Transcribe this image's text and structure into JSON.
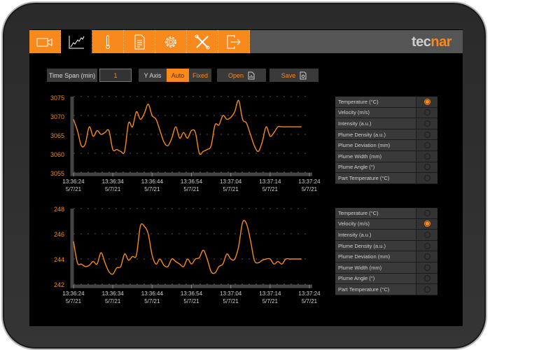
{
  "brand": {
    "logo_left": "tec",
    "logo_right": "nar",
    "accent": "#f7891d"
  },
  "nav": {
    "items": [
      {
        "name": "camera",
        "icon": "video-camera-icon",
        "active": false
      },
      {
        "name": "charts",
        "icon": "line-chart-icon",
        "active": true
      },
      {
        "name": "temperature",
        "icon": "thermometer-icon",
        "active": false
      },
      {
        "name": "report",
        "icon": "document-icon",
        "active": false
      },
      {
        "name": "settings",
        "icon": "gear-icon",
        "active": false
      },
      {
        "name": "tools",
        "icon": "tools-icon",
        "active": false
      },
      {
        "name": "exit",
        "icon": "logout-icon",
        "active": false
      }
    ]
  },
  "toolbar": {
    "time_span_label": "Time Span (min)",
    "time_span_value": "1",
    "y_axis_label": "Y Axis",
    "auto_label": "Auto",
    "fixed_label": "Fixed",
    "y_axis_mode": "Auto",
    "open_label": "Open",
    "save_label": "Save"
  },
  "legend_options": [
    "Temperature (°C)",
    "Velocity (m/s)",
    "Intensity (a.u.)",
    "Plume Density (a.u.)",
    "Plume Deviation (mm)",
    "Plume Width (mm)",
    "Plume Angle (°)",
    "Part Temperature (°C)"
  ],
  "chart_data": [
    {
      "type": "line",
      "title": "Temperature (°C)",
      "selected_series": "Temperature (°C)",
      "ylim": [
        3055,
        3075
      ],
      "yticks": [
        "3075",
        "3070",
        "3065",
        "3060",
        "3055"
      ],
      "xticks": [
        {
          "time": "13:36:24",
          "date": "5/7/21"
        },
        {
          "time": "13:36:34",
          "date": "5/7/21"
        },
        {
          "time": "13:36:44",
          "date": "5/7/21"
        },
        {
          "time": "13:36:54",
          "date": "5/7/21"
        },
        {
          "time": "13:37:04",
          "date": "5/7/21"
        },
        {
          "time": "13:37:14",
          "date": "5/7/21"
        },
        {
          "time": "13:37:24",
          "date": "5/7/21"
        }
      ],
      "grid": true,
      "color": "#f7891d",
      "x_seconds": [
        0,
        1,
        2,
        3,
        4,
        5,
        6,
        7,
        8,
        9,
        10,
        11,
        12,
        13,
        14,
        15,
        16,
        17,
        18,
        19,
        20,
        21,
        22,
        23,
        24,
        25,
        26,
        27,
        28,
        29,
        30,
        31,
        32,
        33,
        34,
        35,
        36,
        37,
        38,
        39,
        40,
        41,
        42,
        43,
        44,
        45,
        46,
        47,
        48,
        49,
        50,
        51,
        52,
        53,
        54,
        55,
        56,
        57,
        58
      ],
      "values": [
        3069,
        3066,
        3062,
        3062.5,
        3067,
        3064.5,
        3066,
        3065,
        3065.5,
        3066,
        3061,
        3061,
        3060.5,
        3060.5,
        3068,
        3067,
        3071,
        3069,
        3070.5,
        3073,
        3070,
        3069,
        3066,
        3063,
        3062,
        3064,
        3067,
        3064,
        3065.5,
        3064,
        3066,
        3065.5,
        3060,
        3060.5,
        3061,
        3062,
        3067.5,
        3067.5,
        3070,
        3069,
        3069.5,
        3071,
        3074,
        3069,
        3068,
        3065,
        3062,
        3060.5,
        3063,
        3067,
        3064.5,
        3065.5,
        3067,
        3067,
        3067,
        3067,
        3067,
        3067,
        3067
      ]
    },
    {
      "type": "line",
      "title": "Velocity (m/s)",
      "selected_series": "Velocity (m/s)",
      "ylim": [
        242,
        248
      ],
      "yticks": [
        "248",
        "246",
        "244",
        "242"
      ],
      "xticks": [
        {
          "time": "13:36:24",
          "date": "5/7/21"
        },
        {
          "time": "13:36:34",
          "date": "5/7/21"
        },
        {
          "time": "13:36:44",
          "date": "5/7/21"
        },
        {
          "time": "13:36:54",
          "date": "5/7/21"
        },
        {
          "time": "13:37:04",
          "date": "5/7/21"
        },
        {
          "time": "13:37:14",
          "date": "5/7/21"
        },
        {
          "time": "13:37:24",
          "date": "5/7/21"
        }
      ],
      "grid": true,
      "color": "#f7891d",
      "x_seconds": [
        0,
        1,
        2,
        3,
        4,
        5,
        6,
        7,
        8,
        9,
        10,
        11,
        12,
        13,
        14,
        15,
        16,
        17,
        18,
        19,
        20,
        21,
        22,
        23,
        24,
        25,
        26,
        27,
        28,
        29,
        30,
        31,
        32,
        33,
        34,
        35,
        36,
        37,
        38,
        39,
        40,
        41,
        42,
        43,
        44,
        45,
        46,
        47,
        48,
        49,
        50,
        51,
        52,
        53,
        54,
        55,
        56,
        57,
        58
      ],
      "values": [
        245.4,
        243.7,
        243.6,
        243.4,
        243.5,
        243.8,
        243.6,
        244.5,
        243.7,
        243.0,
        242.8,
        243.3,
        243.4,
        244.4,
        243.9,
        244.2,
        244.3,
        246.6,
        246.6,
        246.0,
        244.3,
        243.6,
        244.0,
        243.5,
        243.4,
        244.0,
        243.8,
        243.6,
        243.4,
        244.0,
        243.6,
        244.0,
        244.1,
        244.7,
        244.0,
        243.0,
        242.9,
        243.4,
        243.6,
        244.4,
        244.0,
        244.0,
        245.0,
        246.9,
        246.8,
        245.5,
        243.9,
        243.7,
        243.9,
        244.0,
        244.0,
        243.6,
        243.8,
        243.6,
        244.0,
        244.0,
        244.0,
        244.0,
        244.0
      ]
    }
  ]
}
